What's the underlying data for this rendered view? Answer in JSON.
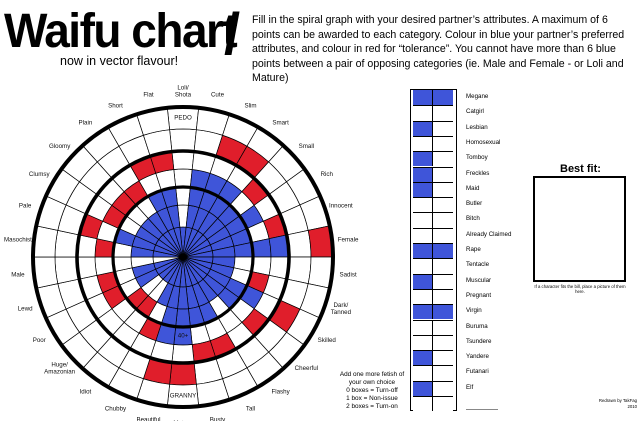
{
  "header": {
    "title": "Waifu chart",
    "subtitle": "now in vector flavour!",
    "slash": "/",
    "instructions": "Fill in the spiral graph with your desired partner’s attributes. A maximum of 6 points can be awarded to each category. Colour in blue your partner’s preferred attributes, and colour in red for “tolerance”. You cannot have more than 6 blue points between a pair of opposing categories (ie. Male and Female - or Loli and Mature)"
  },
  "colors": {
    "blue": "#3f55d9",
    "red": "#e01e2b",
    "white": "#ffffff",
    "ink": "#000000"
  },
  "wheel": {
    "categories": [
      {
        "label": "Loli/\nShota",
        "fill": 1,
        "red_slot": 0,
        "pair": "Mature"
      },
      {
        "label": "Cute",
        "fill": 4,
        "red_slot": -1,
        "pair": "Beautiful"
      },
      {
        "label": "Slim",
        "fill": 4,
        "red_slot": 5,
        "pair": "Chubby"
      },
      {
        "label": "Smart",
        "fill": 4,
        "red_slot": 5,
        "pair": "Idiot"
      },
      {
        "label": "Small",
        "fill": 3,
        "red_slot": 4,
        "pair": "Huge/\nAmazonian"
      },
      {
        "label": "Rich",
        "fill": 4,
        "red_slot": -1,
        "pair": "Poor"
      },
      {
        "label": "Innocent",
        "fill": 3,
        "red_slot": 4,
        "pair": "Lewd"
      },
      {
        "label": "Female",
        "fill": 5,
        "red_slot": 6,
        "pair": "Male"
      },
      {
        "label": "Sadist",
        "fill": 2,
        "red_slot": -1,
        "pair": "Masochist"
      },
      {
        "label": "Dark/\nTanned",
        "fill": 2,
        "red_slot": 3,
        "pair": "Pale"
      },
      {
        "label": "Skilled",
        "fill": 4,
        "red_slot": 5,
        "pair": "Clumsy"
      },
      {
        "label": "Cheerful",
        "fill": 3,
        "red_slot": 4,
        "pair": "Gloomy"
      },
      {
        "label": "Flashy",
        "fill": 2,
        "red_slot": -1,
        "pair": "Plain"
      },
      {
        "label": "Tall",
        "fill": 3,
        "red_slot": 4,
        "pair": "Short"
      },
      {
        "label": "Busty",
        "fill": 3,
        "red_slot": 4,
        "pair": "Flat"
      },
      {
        "label": "Mature",
        "fill": 4,
        "red_slot": 5,
        "pair": "Loli/Shota"
      },
      {
        "label": "Beautiful",
        "fill": 4,
        "red_slot": 5,
        "pair": "Cute"
      },
      {
        "label": "Chubby",
        "fill": 2,
        "red_slot": 3,
        "pair": "Slim"
      },
      {
        "label": "Idiot",
        "fill": 1,
        "red_slot": 2,
        "pair": "Smart"
      },
      {
        "label": "Huge/\nAmazonian",
        "fill": 1,
        "red_slot": 2,
        "pair": "Small"
      },
      {
        "label": "Poor",
        "fill": 2,
        "red_slot": 3,
        "pair": "Rich"
      },
      {
        "label": "Lewd",
        "fill": 2,
        "red_slot": 3,
        "pair": "Innocent"
      },
      {
        "label": "Male",
        "fill": 0,
        "red_slot": -1,
        "pair": "Female"
      },
      {
        "label": "Masochist",
        "fill": 2,
        "red_slot": 3,
        "pair": "Sadist"
      },
      {
        "label": "Pale",
        "fill": 3,
        "red_slot": 4,
        "pair": "Dark/Tanned"
      },
      {
        "label": "Clumsy",
        "fill": 2,
        "red_slot": 3,
        "pair": "Skilled"
      },
      {
        "label": "Gloomy",
        "fill": 2,
        "red_slot": 3,
        "pair": "Cheerful"
      },
      {
        "label": "Plain",
        "fill": 2,
        "red_slot": 3,
        "pair": "Flashy"
      },
      {
        "label": "Short",
        "fill": 3,
        "red_slot": 4,
        "pair": "Tall"
      },
      {
        "label": "Flat",
        "fill": 3,
        "red_slot": 4,
        "pair": "Busty"
      }
    ],
    "ring_texts": [
      {
        "text": "PEDO",
        "category": 0,
        "ring": 6
      },
      {
        "text": "40+",
        "category": 15,
        "ring": 3
      },
      {
        "text": "GRANNY",
        "category": 15,
        "ring": 6
      }
    ]
  },
  "fetish_column": {
    "items": [
      {
        "label": "Megane",
        "blue": 2,
        "red": 0
      },
      {
        "label": "Catgirl",
        "blue": 0,
        "red": 0
      },
      {
        "label": "Lesbian",
        "blue": 1,
        "red": 0
      },
      {
        "label": "Homosexual",
        "blue": 0,
        "red": 0
      },
      {
        "label": "Tomboy",
        "blue": 1,
        "red": 0
      },
      {
        "label": "Freckles",
        "blue": 1,
        "red": 0
      },
      {
        "label": "Maid",
        "blue": 1,
        "red": 0
      },
      {
        "label": "Butler",
        "blue": 0,
        "red": 0
      },
      {
        "label": "Bitch",
        "blue": 0,
        "red": 0
      },
      {
        "label": "Already Claimed",
        "blue": 0,
        "red": 0
      },
      {
        "label": "Rape",
        "blue": 2,
        "red": 0
      },
      {
        "label": "Tentacle",
        "blue": 0,
        "red": 0
      },
      {
        "label": "Muscular",
        "blue": 1,
        "red": 0
      },
      {
        "label": "Pregnant",
        "blue": 0,
        "red": 0
      },
      {
        "label": "Virgin",
        "blue": 2,
        "red": 0
      },
      {
        "label": "Buruma",
        "blue": 0,
        "red": 0
      },
      {
        "label": "Tsundere",
        "blue": 0,
        "red": 0
      },
      {
        "label": "Yandere",
        "blue": 1,
        "red": 0
      },
      {
        "label": "Futanari",
        "blue": 0,
        "red": 0
      },
      {
        "label": "Elf",
        "blue": 1,
        "red": 0
      },
      {
        "label": "",
        "blue": 0,
        "red": 0
      }
    ]
  },
  "best_fit": {
    "title": "Best fit:",
    "note": "If a character fits the bill, place a picture of them here."
  },
  "extra_note": "Add one more fetish of your own choice\n0 boxes = Turn-off\n1 box = Non-issue\n2 boxes = Turn-on",
  "credit": "Redrawn by TakFag\n2010"
}
